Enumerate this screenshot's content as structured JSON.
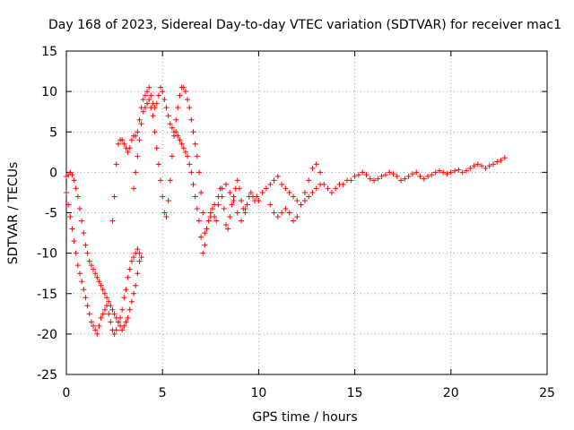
{
  "chart_data": {
    "type": "scatter",
    "title": "Day 168 of 2023, Sidereal Day-to-day VTEC variation (SDTVAR) for receiver mac1",
    "xlabel": "GPS time / hours",
    "ylabel": "SDTVAR / TECUs",
    "xlim": [
      0,
      25
    ],
    "ylim": [
      -25,
      15
    ],
    "x_ticks": [
      0,
      5,
      10,
      15,
      20,
      25
    ],
    "y_ticks": [
      -25,
      -20,
      -15,
      -10,
      -5,
      0,
      5,
      10,
      15
    ],
    "x_tick_labels": [
      "0",
      "5",
      "10",
      "15",
      "20",
      "25"
    ],
    "y_tick_labels": [
      "-25",
      "-20",
      "-15",
      "-10",
      "-5",
      "0",
      "5",
      "10",
      "15"
    ],
    "grid": true,
    "marker": "+",
    "color": "#ff0000",
    "series": [
      {
        "name": "mac1",
        "x": [
          0.0,
          0.1,
          0.2,
          0.3,
          0.4,
          0.5,
          0.6,
          0.7,
          0.8,
          0.9,
          1.0,
          1.1,
          1.2,
          1.3,
          1.4,
          1.5,
          1.6,
          1.7,
          1.8,
          1.9,
          2.0,
          2.1,
          2.2,
          2.3,
          2.4,
          2.5,
          2.6,
          2.7,
          2.8,
          2.9,
          3.0,
          3.1,
          3.2,
          3.3,
          3.4,
          3.5,
          3.6,
          3.7,
          3.8,
          3.9,
          0.0,
          0.1,
          0.2,
          0.3,
          0.4,
          0.5,
          0.6,
          0.7,
          0.8,
          0.9,
          1.0,
          1.1,
          1.2,
          1.3,
          1.4,
          1.5,
          1.6,
          1.7,
          1.8,
          1.9,
          2.0,
          2.1,
          2.2,
          2.3,
          2.4,
          2.5,
          2.6,
          2.7,
          2.8,
          2.9,
          3.0,
          3.1,
          3.2,
          3.3,
          3.4,
          3.5,
          3.6,
          3.7,
          3.8,
          2.4,
          2.5,
          2.6,
          2.7,
          2.8,
          2.9,
          3.0,
          3.1,
          3.2,
          3.3,
          3.4,
          3.5,
          3.6,
          3.7,
          3.8,
          3.9,
          4.0,
          4.1,
          4.2,
          4.3,
          4.4,
          4.5,
          4.6,
          4.7,
          4.8,
          4.9,
          5.0,
          5.1,
          5.2,
          5.3,
          5.4,
          5.5,
          5.6,
          5.7,
          5.8,
          5.9,
          6.0,
          6.1,
          6.2,
          6.3,
          6.4,
          6.5,
          6.6,
          6.7,
          6.8,
          6.9,
          7.0,
          7.1,
          3.5,
          3.6,
          3.7,
          3.8,
          3.9,
          4.0,
          4.1,
          4.2,
          4.3,
          4.4,
          4.5,
          4.6,
          4.7,
          4.8,
          4.9,
          5.0,
          5.1,
          5.2,
          5.3,
          5.4,
          5.5,
          5.6,
          5.7,
          5.8,
          5.9,
          6.0,
          6.1,
          6.2,
          6.3,
          6.4,
          6.5,
          6.6,
          6.7,
          6.8,
          6.9,
          7.0,
          7.1,
          7.2,
          7.2,
          7.3,
          7.4,
          7.5,
          7.6,
          7.7,
          7.8,
          7.9,
          8.0,
          8.1,
          8.2,
          8.3,
          8.4,
          8.5,
          8.6,
          8.7,
          8.8,
          8.9,
          9.0,
          9.1,
          9.2,
          9.3,
          9.4,
          9.5,
          9.6,
          9.7,
          9.8,
          9.9,
          7.3,
          7.5,
          7.7,
          7.9,
          8.1,
          8.3,
          8.5,
          8.7,
          8.9,
          9.1,
          9.3,
          10.0,
          10.2,
          10.4,
          10.6,
          10.8,
          11.0,
          11.2,
          11.4,
          11.6,
          11.8,
          12.0,
          12.2,
          12.4,
          12.6,
          12.8,
          13.0,
          13.2,
          13.4,
          13.6,
          13.8,
          14.0,
          14.2,
          14.4,
          14.6,
          14.8,
          10.6,
          10.8,
          11.0,
          11.2,
          11.4,
          11.6,
          11.8,
          12.0,
          12.2,
          12.4,
          12.6,
          12.8,
          13.0,
          13.2,
          15.0,
          15.2,
          15.4,
          15.6,
          15.8,
          16.0,
          16.2,
          16.4,
          16.6,
          16.8,
          17.0,
          17.2,
          17.4,
          17.6,
          17.8,
          18.0,
          18.2,
          18.4,
          18.6,
          18.8,
          19.0,
          19.2,
          19.4,
          19.6,
          19.8,
          20.0,
          20.2,
          20.4,
          20.6,
          20.8,
          21.0,
          21.2,
          21.4,
          21.6,
          21.8,
          22.0,
          22.2,
          22.4,
          22.6,
          22.8
        ],
        "y": [
          -2.5,
          -4.0,
          -5.5,
          -7.0,
          -8.5,
          -10.0,
          -11.5,
          -12.5,
          -13.5,
          -14.5,
          -15.5,
          -16.5,
          -17.5,
          -18.5,
          -19.0,
          -19.5,
          -20.0,
          -19.0,
          -18.0,
          -17.5,
          -17.0,
          -16.5,
          -17.5,
          -18.5,
          -19.5,
          -20.0,
          -19.5,
          -18.5,
          -18.0,
          -17.0,
          -15.5,
          -14.5,
          -13.0,
          -12.0,
          -11.0,
          -10.5,
          -10.0,
          -9.5,
          -10.0,
          -10.5,
          -0.5,
          -0.3,
          0.0,
          -0.3,
          -1.0,
          -2.0,
          -3.0,
          -4.5,
          -6.0,
          -7.5,
          -9.0,
          -10.0,
          -11.0,
          -11.5,
          -12.0,
          -12.5,
          -13.0,
          -13.5,
          -14.0,
          -14.5,
          -15.0,
          -15.5,
          -16.0,
          -16.5,
          -17.0,
          -17.5,
          -18.0,
          -18.5,
          -19.0,
          -19.5,
          -19.0,
          -18.5,
          -18.0,
          -17.0,
          -16.0,
          -15.0,
          -14.0,
          -12.5,
          -11.0,
          -6.0,
          -3.0,
          1.0,
          3.5,
          4.0,
          4.0,
          3.5,
          3.0,
          2.5,
          3.0,
          4.0,
          4.5,
          4.5,
          5.0,
          6.5,
          8.0,
          9.0,
          9.5,
          10.0,
          10.5,
          9.5,
          8.5,
          8.0,
          8.5,
          9.5,
          10.5,
          10.0,
          9.0,
          8.0,
          7.0,
          6.0,
          5.5,
          5.0,
          5.0,
          4.5,
          4.0,
          3.5,
          3.0,
          2.5,
          2.0,
          1.0,
          0.0,
          -1.5,
          -3.0,
          -4.5,
          -6.0,
          -8.0,
          -10.0,
          -2.0,
          0.0,
          2.0,
          4.0,
          6.0,
          7.5,
          8.0,
          8.5,
          9.0,
          8.0,
          7.0,
          5.0,
          3.0,
          1.0,
          -1.0,
          -3.0,
          -5.0,
          -5.5,
          -3.5,
          -1.0,
          2.0,
          4.5,
          6.5,
          8.0,
          9.5,
          10.5,
          10.5,
          10.0,
          9.0,
          8.0,
          6.5,
          5.0,
          3.5,
          2.0,
          0.0,
          -2.5,
          -5.0,
          -7.5,
          -9.0,
          -7.0,
          -6.0,
          -5.0,
          -4.5,
          -5.5,
          -6.0,
          -4.0,
          -2.0,
          -3.0,
          -4.5,
          -6.5,
          -7.0,
          -5.5,
          -4.0,
          -3.0,
          -2.0,
          -1.0,
          -2.0,
          -3.5,
          -4.5,
          -5.0,
          -4.0,
          -3.0,
          -2.5,
          -3.0,
          -3.5,
          -3.0,
          -7.0,
          -5.5,
          -4.0,
          -3.0,
          -2.0,
          -1.5,
          -2.5,
          -3.5,
          -5.0,
          -6.0,
          -4.5,
          -3.5,
          -2.5,
          -2.0,
          -1.5,
          -1.0,
          -0.5,
          -1.5,
          -2.0,
          -2.5,
          -3.0,
          -3.5,
          -4.0,
          -3.5,
          -3.0,
          -2.5,
          -2.0,
          -1.5,
          -1.5,
          -2.0,
          -2.5,
          -2.0,
          -1.5,
          -1.5,
          -1.0,
          -1.0,
          -4.0,
          -5.0,
          -5.5,
          -5.0,
          -4.5,
          -5.0,
          -6.0,
          -5.5,
          -4.0,
          -2.5,
          -1.0,
          0.5,
          1.0,
          0.0,
          -0.5,
          -0.3,
          0.0,
          -0.3,
          -0.8,
          -1.0,
          -0.8,
          -0.5,
          -0.3,
          0.0,
          -0.2,
          -0.5,
          -1.0,
          -0.8,
          -0.5,
          -0.2,
          0.0,
          -0.5,
          -0.8,
          -0.5,
          -0.3,
          0.0,
          0.2,
          0.0,
          -0.2,
          0.0,
          0.2,
          0.3,
          0.0,
          0.2,
          0.5,
          0.8,
          1.0,
          0.8,
          0.5,
          0.8,
          1.0,
          1.3,
          1.5,
          1.8
        ]
      }
    ]
  }
}
